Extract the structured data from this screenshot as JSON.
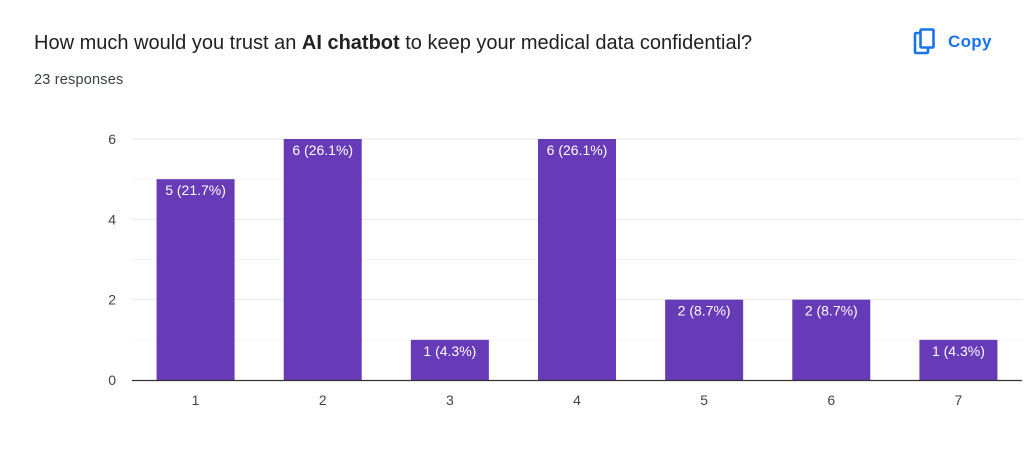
{
  "question": {
    "prefix": "How much would you trust an ",
    "bold": "AI chatbot",
    "suffix": " to keep your medical data confidential?"
  },
  "responses_text": "23 responses",
  "copy_button": {
    "label": "Copy",
    "icon": "copy-icon"
  },
  "colors": {
    "bar": "#673ab7",
    "accent": "#1a73e8",
    "grid": "#eeeeee",
    "axis": "#333333"
  },
  "chart_data": {
    "type": "bar",
    "categories": [
      "1",
      "2",
      "3",
      "4",
      "5",
      "6",
      "7"
    ],
    "values": [
      5,
      6,
      1,
      6,
      2,
      2,
      1
    ],
    "data_labels": [
      "5 (21.7%)",
      "6 (26.1%)",
      "1 (4.3%)",
      "6 (26.1%)",
      "2 (8.7%)",
      "2 (8.7%)",
      "1 (4.3%)"
    ],
    "yticks": [
      0,
      2,
      4,
      6
    ],
    "ylim": [
      0,
      6
    ],
    "grid": true,
    "title": "",
    "xlabel": "",
    "ylabel": ""
  }
}
